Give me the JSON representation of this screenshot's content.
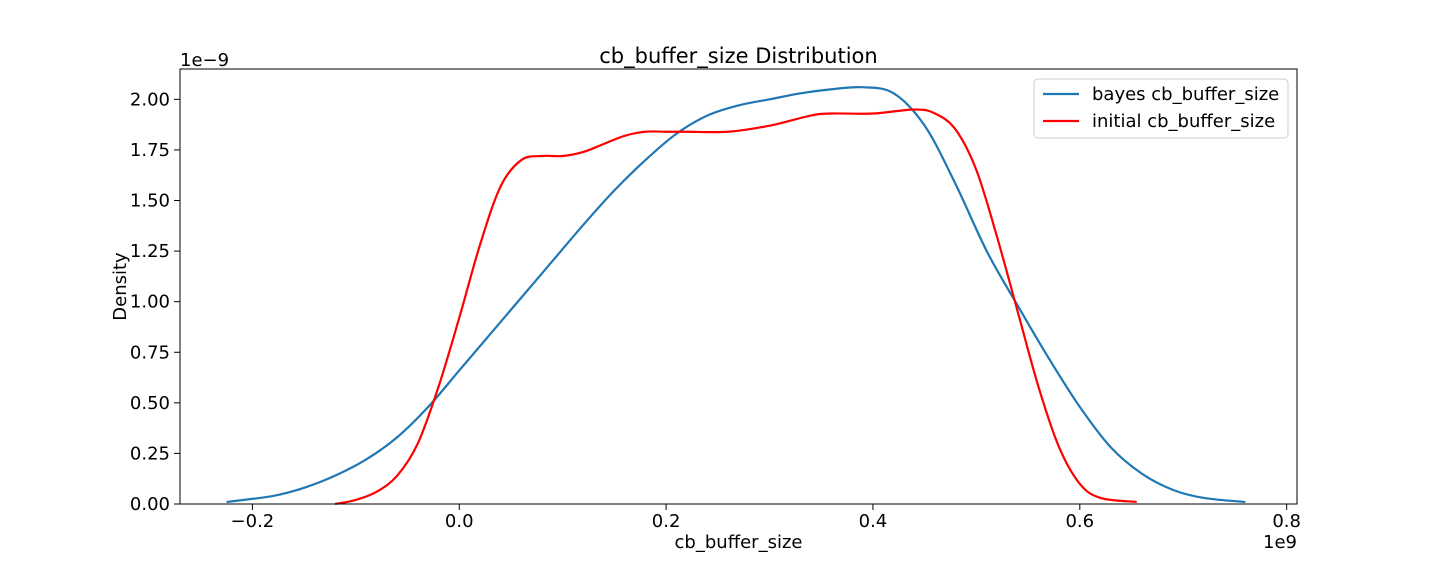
{
  "chart_data": {
    "type": "line",
    "title": "cb_buffer_size Distribution",
    "xlabel": "cb_buffer_size",
    "ylabel": "Density",
    "x_scale_label": "1e9",
    "y_scale_label": "1e−9",
    "xlim": [
      -0.27,
      0.81
    ],
    "ylim": [
      0.0,
      2.15
    ],
    "x_ticks": [
      -0.2,
      0.0,
      0.2,
      0.4,
      0.6,
      0.8
    ],
    "x_tick_labels": [
      "−0.2",
      "0.0",
      "0.2",
      "0.4",
      "0.6",
      "0.8"
    ],
    "y_ticks": [
      0.0,
      0.25,
      0.5,
      0.75,
      1.0,
      1.25,
      1.5,
      1.75,
      2.0
    ],
    "y_tick_labels": [
      "0.00",
      "0.25",
      "0.50",
      "0.75",
      "1.00",
      "1.25",
      "1.50",
      "1.75",
      "2.00"
    ],
    "grid": false,
    "legend_position": "top-right",
    "series": [
      {
        "name": "bayes cb_buffer_size",
        "color": "#1f77b4",
        "x": [
          -0.225,
          -0.18,
          -0.15,
          -0.12,
          -0.09,
          -0.06,
          -0.03,
          0.0,
          0.03,
          0.06,
          0.09,
          0.12,
          0.15,
          0.18,
          0.21,
          0.24,
          0.27,
          0.3,
          0.33,
          0.36,
          0.39,
          0.42,
          0.45,
          0.48,
          0.51,
          0.54,
          0.57,
          0.6,
          0.63,
          0.66,
          0.69,
          0.72,
          0.76
        ],
        "y": [
          0.01,
          0.04,
          0.08,
          0.14,
          0.22,
          0.33,
          0.48,
          0.66,
          0.84,
          1.02,
          1.2,
          1.38,
          1.55,
          1.7,
          1.83,
          1.92,
          1.97,
          2.0,
          2.03,
          2.05,
          2.06,
          2.03,
          1.87,
          1.58,
          1.25,
          0.98,
          0.72,
          0.48,
          0.28,
          0.15,
          0.07,
          0.03,
          0.01
        ]
      },
      {
        "name": "initial cb_buffer_size",
        "color": "#ff0000",
        "x": [
          -0.12,
          -0.1,
          -0.08,
          -0.06,
          -0.04,
          -0.02,
          0.0,
          0.02,
          0.04,
          0.06,
          0.08,
          0.1,
          0.12,
          0.14,
          0.16,
          0.18,
          0.2,
          0.22,
          0.26,
          0.3,
          0.34,
          0.36,
          0.4,
          0.44,
          0.46,
          0.48,
          0.5,
          0.52,
          0.54,
          0.56,
          0.58,
          0.6,
          0.62,
          0.655
        ],
        "y": [
          0.0,
          0.02,
          0.06,
          0.14,
          0.3,
          0.58,
          0.92,
          1.28,
          1.57,
          1.7,
          1.72,
          1.72,
          1.74,
          1.78,
          1.82,
          1.84,
          1.84,
          1.84,
          1.84,
          1.87,
          1.92,
          1.93,
          1.93,
          1.95,
          1.93,
          1.85,
          1.65,
          1.32,
          0.95,
          0.58,
          0.28,
          0.1,
          0.03,
          0.01
        ]
      }
    ]
  }
}
